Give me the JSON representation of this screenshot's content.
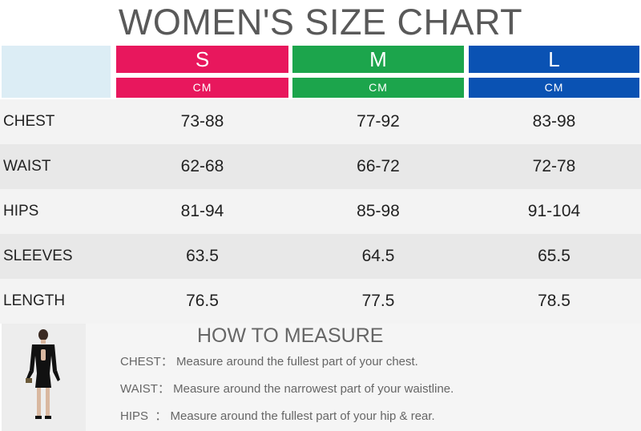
{
  "title": "WOMEN'S SIZE CHART",
  "colors": {
    "s": "#e8175d",
    "m": "#1ca54c",
    "l": "#0a52b3",
    "corner": "#dcedf5"
  },
  "sizes": [
    {
      "label": "S",
      "unit": "CM"
    },
    {
      "label": "M",
      "unit": "CM"
    },
    {
      "label": "L",
      "unit": "CM"
    }
  ],
  "rows": [
    {
      "label": "CHEST",
      "values": [
        "73-88",
        "77-92",
        "83-98"
      ]
    },
    {
      "label": "WAIST",
      "values": [
        "62-68",
        "66-72",
        "72-78"
      ]
    },
    {
      "label": "HIPS",
      "values": [
        "81-94",
        "85-98",
        "91-104"
      ]
    },
    {
      "label": "SLEEVES",
      "values": [
        "63.5",
        "64.5",
        "65.5"
      ]
    },
    {
      "label": "LENGTH",
      "values": [
        "76.5",
        "77.5",
        "78.5"
      ]
    }
  ],
  "how_to": {
    "title": "HOW TO MEASURE",
    "items": [
      {
        "key": "CHEST：",
        "text": "Measure around the fullest part of your chest."
      },
      {
        "key": "WAIST：",
        "text": "Measure around the narrowest part of your waistline."
      },
      {
        "key": "HIPS  ：",
        "text": "Measure around the fullest part of your hip & rear."
      }
    ]
  }
}
